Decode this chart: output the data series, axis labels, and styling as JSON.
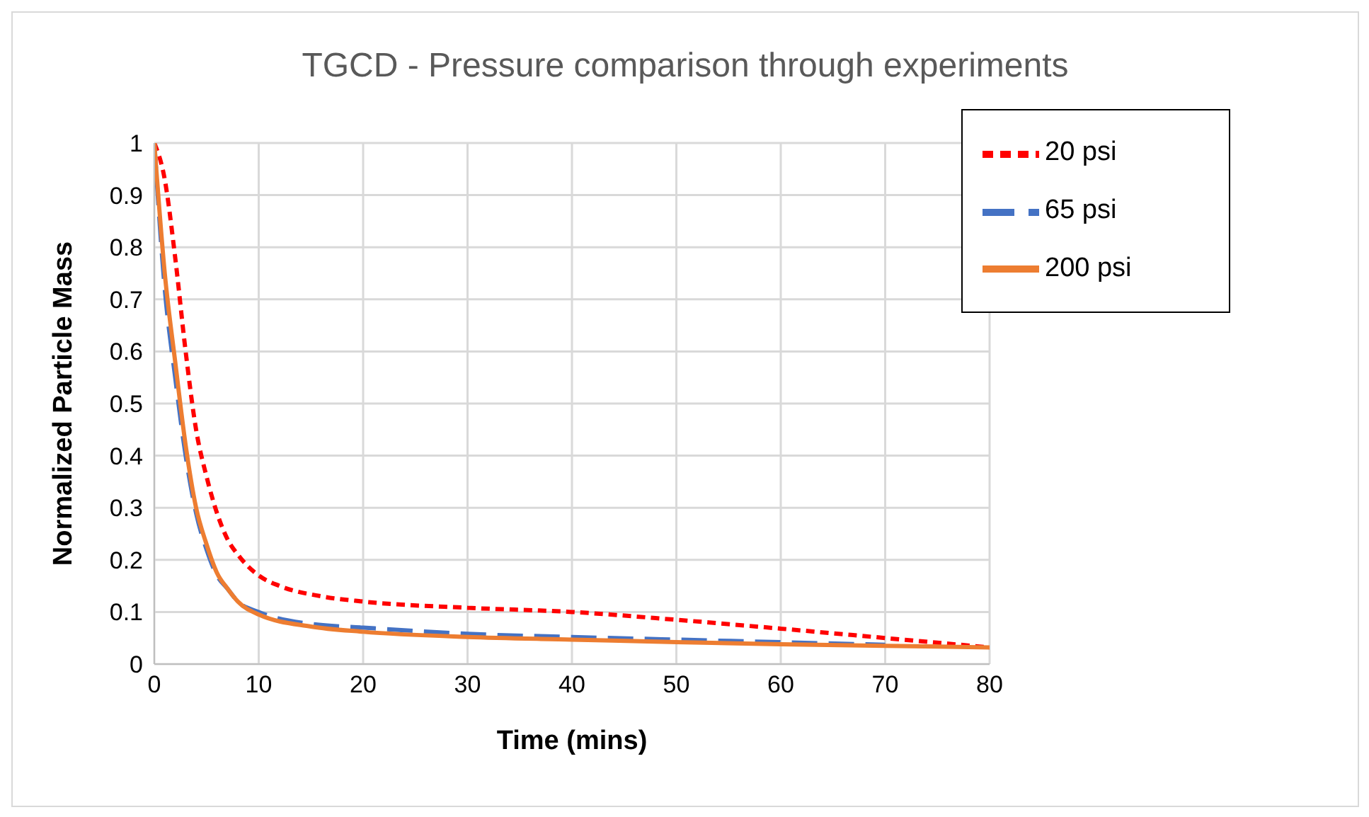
{
  "chart_data": {
    "type": "line",
    "title": "TGCD - Pressure comparison through experiments",
    "xlabel": "Time (mins)",
    "ylabel": "Normalized Particle Mass",
    "xlim": [
      0,
      80
    ],
    "xticks": [
      0,
      10,
      20,
      30,
      40,
      50,
      60,
      70,
      80
    ],
    "ylim": [
      0,
      1
    ],
    "yticks": [
      0,
      0.1,
      0.2,
      0.3,
      0.4,
      0.5,
      0.6,
      0.7,
      0.8,
      0.9,
      1
    ],
    "grid": true,
    "legend": "top right",
    "marker": "none",
    "series": [
      {
        "name": "20 psi",
        "color": "#ff0000",
        "line_style": "dotted",
        "x": [
          0,
          1,
          2,
          3,
          4,
          5,
          6,
          7,
          8,
          10,
          12,
          16,
          20,
          30,
          40,
          50,
          60,
          70,
          80
        ],
        "values": [
          1,
          0.93,
          0.78,
          0.6,
          0.45,
          0.36,
          0.29,
          0.24,
          0.21,
          0.17,
          0.15,
          0.13,
          0.12,
          0.108,
          0.1,
          0.085,
          0.068,
          0.05,
          0.032
        ]
      },
      {
        "name": "65 psi",
        "color": "#4472c4",
        "line_style": "dashed",
        "x": [
          0,
          1,
          2,
          3,
          4,
          5,
          6,
          7,
          8,
          10,
          15,
          20,
          30,
          40,
          50,
          60,
          70
        ],
        "values": [
          1,
          0.72,
          0.55,
          0.4,
          0.29,
          0.22,
          0.17,
          0.145,
          0.12,
          0.1,
          0.077,
          0.07,
          0.058,
          0.052,
          0.047,
          0.042,
          0.037
        ]
      },
      {
        "name": "200 psi",
        "color": "#ed7d31",
        "line_style": "solid",
        "x": [
          0,
          1,
          2,
          3,
          4,
          5,
          6,
          7,
          8,
          10,
          15,
          20,
          30,
          40,
          50,
          60,
          70,
          80
        ],
        "values": [
          1,
          0.75,
          0.58,
          0.42,
          0.3,
          0.23,
          0.175,
          0.145,
          0.12,
          0.095,
          0.072,
          0.062,
          0.052,
          0.047,
          0.042,
          0.038,
          0.035,
          0.032
        ]
      }
    ]
  }
}
